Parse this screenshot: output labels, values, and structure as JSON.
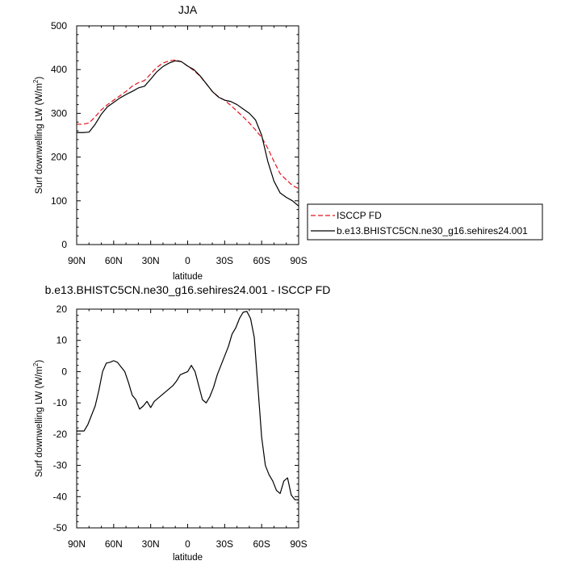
{
  "charts": {
    "top": {
      "title": "JJA",
      "ylabel_main": "Surf downwelling LW (W/m",
      "ylabel_sup": "2",
      "ylabel_end": ")",
      "xlabel": "latitude"
    },
    "bottom": {
      "title": "b.e13.BHISTC5CN.ne30_g16.sehires24.001 - ISCCP FD",
      "ylabel_main": "Surf downwelling LW (W/m",
      "ylabel_sup": "2",
      "ylabel_end": ")",
      "xlabel": "latitude"
    }
  },
  "legend": {
    "isccp": "ISCCP FD",
    "model": "b.e13.BHISTC5CN.ne30_g16.sehires24.001"
  },
  "colors": {
    "isccp": "#e0141e",
    "model": "#000000"
  },
  "chart_data": [
    {
      "type": "line",
      "title": "JJA",
      "xlabel": "latitude",
      "ylabel": "Surf downwelling LW (W/m2)",
      "xlim": [
        90,
        -90
      ],
      "ylim": [
        0,
        500
      ],
      "x_ticks": [
        90,
        60,
        30,
        0,
        -30,
        -60,
        -90
      ],
      "x_tick_labels": [
        "90N",
        "60N",
        "30N",
        "0",
        "30S",
        "60S",
        "90S"
      ],
      "y_ticks": [
        0,
        100,
        200,
        300,
        400,
        500
      ],
      "y_tick_labels": [
        "0",
        "100",
        "200",
        "300",
        "400",
        "500"
      ],
      "legend_position": "outside-right",
      "series": [
        {
          "name": "ISCCP FD",
          "style": "dashed",
          "color": "#e0141e",
          "x": [
            90,
            85,
            80,
            75,
            70,
            65,
            60,
            55,
            50,
            45,
            40,
            35,
            30,
            25,
            20,
            15,
            10,
            5,
            0,
            -5,
            -10,
            -15,
            -20,
            -25,
            -30,
            -35,
            -40,
            -45,
            -50,
            -55,
            -60,
            -65,
            -70,
            -75,
            -80,
            -85,
            -90
          ],
          "y": [
            275,
            275,
            278,
            292,
            308,
            320,
            330,
            340,
            350,
            362,
            370,
            375,
            390,
            405,
            415,
            420,
            422,
            418,
            408,
            398,
            385,
            368,
            350,
            338,
            330,
            318,
            305,
            292,
            278,
            262,
            245,
            220,
            190,
            162,
            148,
            135,
            128
          ]
        },
        {
          "name": "b.e13.BHISTC5CN.ne30_g16.sehires24.001",
          "style": "solid",
          "color": "#000000",
          "x": [
            90,
            85,
            80,
            75,
            70,
            65,
            60,
            55,
            50,
            45,
            40,
            35,
            30,
            25,
            20,
            15,
            10,
            5,
            0,
            -5,
            -10,
            -15,
            -20,
            -25,
            -30,
            -35,
            -40,
            -45,
            -50,
            -55,
            -60,
            -65,
            -70,
            -75,
            -80,
            -85,
            -90
          ],
          "y": [
            256,
            256,
            257,
            275,
            298,
            315,
            325,
            335,
            343,
            350,
            358,
            362,
            378,
            395,
            407,
            415,
            420,
            418,
            408,
            400,
            386,
            368,
            350,
            337,
            330,
            327,
            320,
            310,
            300,
            285,
            250,
            190,
            145,
            118,
            108,
            100,
            88
          ]
        }
      ]
    },
    {
      "type": "line",
      "title": "b.e13.BHISTC5CN.ne30_g16.sehires24.001 - ISCCP FD",
      "xlabel": "latitude",
      "ylabel": "Surf downwelling LW (W/m2)",
      "xlim": [
        90,
        -90
      ],
      "ylim": [
        -50,
        20
      ],
      "x_ticks": [
        90,
        60,
        30,
        0,
        -30,
        -60,
        -90
      ],
      "x_tick_labels": [
        "90N",
        "60N",
        "30N",
        "0",
        "30S",
        "60S",
        "90S"
      ],
      "y_ticks": [
        -50,
        -40,
        -30,
        -20,
        -10,
        0,
        10,
        20
      ],
      "y_tick_labels": [
        "-50",
        "-40",
        "-30",
        "-20",
        "-10",
        "0",
        "10",
        "20"
      ],
      "series": [
        {
          "name": "b.e13.BHISTC5CN.ne30_g16.sehires24.001 - ISCCP FD",
          "style": "solid",
          "color": "#000000",
          "x": [
            90,
            87,
            84,
            81,
            78,
            75,
            72,
            69,
            66,
            63,
            60,
            57,
            54,
            51,
            48,
            45,
            42,
            39,
            36,
            33,
            30,
            27,
            24,
            21,
            18,
            15,
            12,
            9,
            6,
            3,
            0,
            -3,
            -6,
            -9,
            -12,
            -15,
            -18,
            -21,
            -24,
            -27,
            -30,
            -33,
            -36,
            -39,
            -42,
            -45,
            -48,
            -51,
            -54,
            -57,
            -60,
            -63,
            -66,
            -69,
            -72,
            -75,
            -78,
            -81,
            -84,
            -87,
            -90
          ],
          "y": [
            -19,
            -19,
            -19,
            -17,
            -14,
            -11,
            -6,
            0,
            2.7,
            3,
            3.5,
            3,
            1.5,
            0,
            -3.5,
            -7.5,
            -9,
            -12,
            -11,
            -9.5,
            -11.5,
            -9.5,
            -8.5,
            -7.5,
            -6.5,
            -5.5,
            -4.5,
            -3,
            -1,
            -0.5,
            0,
            2,
            0,
            -4.5,
            -9,
            -10,
            -8,
            -5,
            -1,
            2,
            5,
            8,
            12,
            14,
            17,
            19,
            19.3,
            17,
            11,
            -5,
            -21,
            -30,
            -33,
            -35,
            -38,
            -39,
            -35,
            -34,
            -39.5,
            -41,
            -41
          ]
        }
      ]
    }
  ]
}
